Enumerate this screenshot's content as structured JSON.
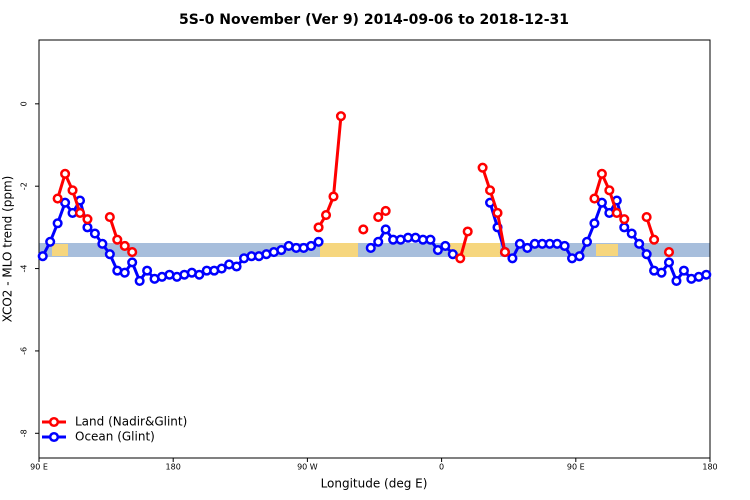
{
  "chart_data": {
    "type": "line",
    "title": "5S-0 November (Ver 9)   2014-09-06 to 2018-12-31",
    "x_label": "Longitude (deg E)",
    "y_label": "XCO2 - MLO trend (ppm)",
    "x": [
      92.5,
      97.5,
      102.5,
      107.5,
      112.5,
      117.5,
      122.5,
      127.5,
      132.5,
      137.5,
      142.5,
      147.5,
      152.5,
      157.5,
      162.5,
      167.5,
      172.5,
      177.5,
      182.5,
      187.5,
      192.5,
      197.5,
      202.5,
      207.5,
      212.5,
      217.5,
      222.5,
      227.5,
      232.5,
      237.5,
      242.5,
      247.5,
      252.5,
      257.5,
      262.5,
      267.5,
      272.5,
      277.5,
      282.5,
      287.5,
      292.5,
      297.5,
      302.5,
      307.5,
      312.5,
      317.5,
      322.5,
      327.5,
      332.5,
      337.5,
      342.5,
      347.5,
      352.5,
      357.5,
      362.5,
      367.5,
      372.5,
      377.5,
      382.5,
      387.5,
      392.5,
      397.5,
      402.5,
      407.5,
      412.5,
      417.5,
      422.5,
      427.5,
      432.5,
      437.5,
      442.5,
      447.5,
      452.5,
      457.5,
      462.5,
      467.5,
      472.5,
      477.5,
      482.5,
      487.5,
      492.5,
      497.5,
      502.5,
      507.5,
      512.5,
      517.5,
      522.5,
      527.5,
      532.5,
      537.5
    ],
    "series": [
      {
        "name": "Ocean (Glint)",
        "color": "#0000ff",
        "values": [
          -3.7,
          -3.35,
          -2.9,
          -2.4,
          -2.65,
          -2.35,
          -3.0,
          -3.15,
          -3.4,
          -3.65,
          -4.05,
          -4.1,
          -3.85,
          -4.3,
          -4.05,
          -4.25,
          -4.2,
          -4.15,
          -4.2,
          -4.15,
          -4.1,
          -4.15,
          -4.05,
          -4.05,
          -4.0,
          -3.9,
          -3.95,
          -3.75,
          -3.7,
          -3.7,
          -3.65,
          -3.6,
          -3.55,
          -3.45,
          -3.5,
          -3.5,
          -3.45,
          -3.35,
          null,
          null,
          null,
          null,
          null,
          null,
          -3.5,
          -3.35,
          -3.05,
          -3.3,
          -3.3,
          -3.25,
          -3.25,
          -3.3,
          -3.3,
          -3.55,
          -3.45,
          -3.65,
          null,
          null,
          null,
          null,
          -2.4,
          -3.0,
          -3.6,
          -3.75,
          -3.4,
          -3.5,
          -3.4,
          -3.4,
          -3.4,
          -3.4,
          -3.45,
          -3.75,
          -3.7,
          -3.35,
          -2.9,
          -2.4,
          -2.65,
          -2.35,
          -3.0,
          -3.15,
          -3.4,
          -3.65,
          -4.05,
          -4.1,
          -3.85,
          -4.3,
          -4.05,
          -4.25,
          -4.2,
          -4.15
        ]
      },
      {
        "name": "Land (Nadir&Glint)",
        "color": "#ff0000",
        "values": [
          null,
          null,
          -2.3,
          -1.7,
          -2.1,
          -2.65,
          -2.8,
          null,
          null,
          -2.75,
          -3.3,
          -3.45,
          -3.6,
          null,
          null,
          null,
          null,
          null,
          null,
          null,
          null,
          null,
          null,
          null,
          null,
          null,
          null,
          null,
          null,
          null,
          null,
          null,
          null,
          null,
          null,
          null,
          null,
          -3.0,
          -2.7,
          -2.25,
          -0.3,
          null,
          null,
          -3.05,
          null,
          -2.75,
          -2.6,
          null,
          null,
          null,
          null,
          null,
          null,
          null,
          null,
          null,
          -3.75,
          -3.1,
          null,
          -1.55,
          -2.1,
          -2.65,
          -3.6,
          null,
          null,
          null,
          null,
          null,
          null,
          null,
          null,
          null,
          null,
          null,
          -2.3,
          -1.7,
          -2.1,
          -2.65,
          -2.8,
          null,
          null,
          -2.75,
          -3.3,
          null,
          -3.6,
          null,
          null,
          null,
          null,
          null
        ]
      }
    ],
    "legend": "bottom-left",
    "xlim": [
      90,
      540
    ],
    "xticks": [
      {
        "value": 90,
        "label": "90 E"
      },
      180,
      {
        "value": 270,
        "label": "90 W"
      },
      {
        "value": 360,
        "label": "0"
      },
      {
        "value": 450,
        "label": "90 E"
      },
      {
        "value": 540,
        "label": "180"
      }
    ],
    "ylim": [
      -8.6,
      1.55
    ],
    "yticks": [
      0,
      -2,
      -4,
      -6,
      -8
    ]
  }
}
